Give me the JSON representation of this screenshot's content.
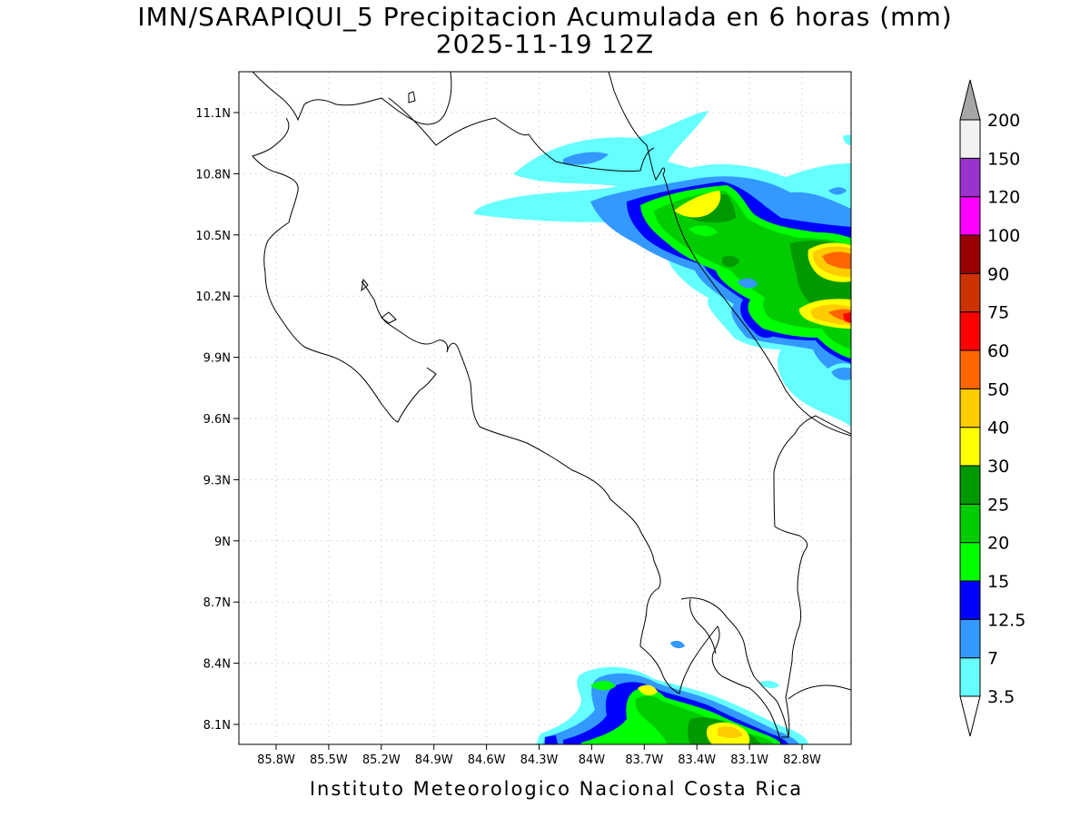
{
  "title": "IMN/SARAPIQUI_5 Precipitacion Acumulada en 6 horas (mm)",
  "subtitle": "2025-11-19 12Z",
  "footer": "Instituto Meteorologico Nacional Costa Rica",
  "lon_ticks": [
    "85.8W",
    "85.5W",
    "85.2W",
    "84.9W",
    "84.6W",
    "84.3W",
    "84W",
    "83.7W",
    "83.4W",
    "83.1W",
    "82.8W"
  ],
  "lat_ticks": [
    "11.1N",
    "10.8N",
    "10.5N",
    "10.2N",
    "9.9N",
    "9.6N",
    "9.3N",
    "9N",
    "8.7N",
    "8.4N",
    "8.1N"
  ],
  "colorbar": {
    "labels": [
      "3.5",
      "7",
      "12.5",
      "15",
      "20",
      "25",
      "30",
      "40",
      "50",
      "60",
      "75",
      "90",
      "100",
      "120",
      "150",
      "200"
    ],
    "colors": [
      "#66ffff",
      "#3399ff",
      "#0000ff",
      "#00ff00",
      "#00cc00",
      "#009900",
      "#ffff00",
      "#ffcc00",
      "#ff6600",
      "#ff0000",
      "#cc3300",
      "#990000",
      "#ff00ff",
      "#9933cc",
      "#f2f2f2"
    ],
    "over_color": "#a6a6a6"
  }
}
